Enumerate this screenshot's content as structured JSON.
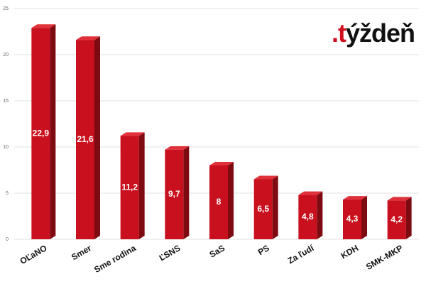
{
  "chart_data": {
    "type": "bar3d",
    "brand": ".týždeň",
    "categories": [
      "OĽaNO",
      "Smer",
      "Sme rodina",
      "ĽSNS",
      "SaS",
      "PS",
      "Za ľudí",
      "KDH",
      "SMK-MKP"
    ],
    "values": [
      22.9,
      21.6,
      11.2,
      9.7,
      8,
      6.5,
      4.8,
      4.3,
      4.2
    ],
    "value_labels": [
      "22,9",
      "21,6",
      "11,2",
      "9,7",
      "8",
      "6,5",
      "4,8",
      "4,3",
      "4,2"
    ],
    "color": "#c8101e",
    "ylim": [
      0,
      25
    ],
    "yticks": [
      0,
      5,
      10,
      15,
      20,
      25
    ],
    "grid": true
  }
}
